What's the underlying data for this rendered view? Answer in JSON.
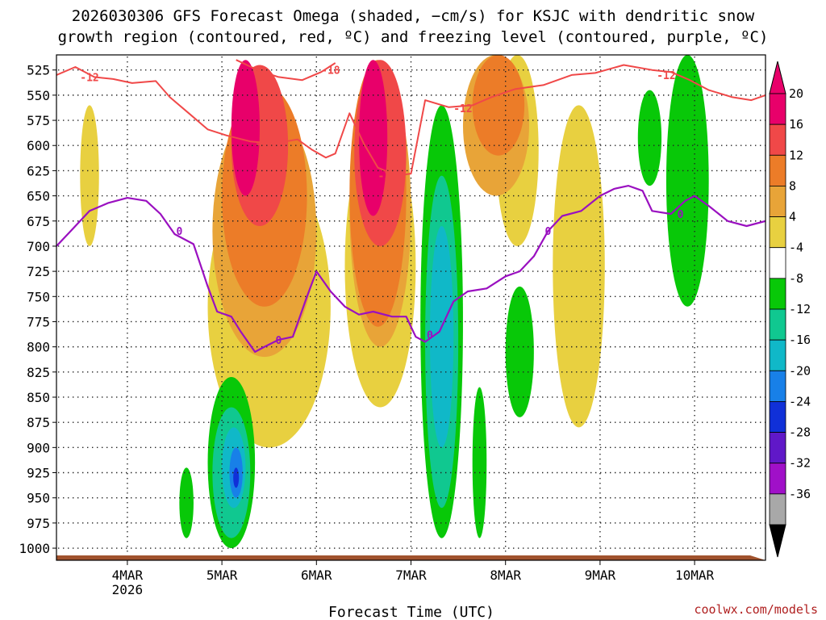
{
  "chart_data": {
    "type": "heatmap",
    "title_line1": "2026030306 GFS Forecast Omega (shaded, −cm/s) for KSJC with dendritic snow",
    "title_line2": "growth region (contoured, red, ºC) and freezing level (contoured, purple, ºC)",
    "xlabel": "Forecast Time (UTC)",
    "credit": "coolwx.com/models",
    "x_start": "2026030306",
    "x_range_days": [
      3.25,
      10.75
    ],
    "x_ticks": [
      {
        "day": 4,
        "label": "4MAR",
        "sublabel": "2026"
      },
      {
        "day": 5,
        "label": "5MAR",
        "sublabel": ""
      },
      {
        "day": 6,
        "label": "6MAR",
        "sublabel": ""
      },
      {
        "day": 7,
        "label": "7MAR",
        "sublabel": ""
      },
      {
        "day": 8,
        "label": "8MAR",
        "sublabel": ""
      },
      {
        "day": 9,
        "label": "9MAR",
        "sublabel": ""
      },
      {
        "day": 10,
        "label": "10MAR",
        "sublabel": ""
      }
    ],
    "y_axis": "pressure (hPa)",
    "y_range": [
      510,
      1012
    ],
    "y_ticks": [
      525,
      550,
      575,
      600,
      625,
      650,
      675,
      700,
      725,
      750,
      775,
      800,
      825,
      850,
      875,
      900,
      925,
      950,
      975,
      1000
    ],
    "colorbar": {
      "labels": [
        "20",
        "16",
        "12",
        "8",
        "4",
        "-4",
        "-8",
        "-12",
        "-16",
        "-20",
        "-24",
        "-28",
        "-32",
        "-36"
      ],
      "colors": [
        "#e8006a",
        "#f04848",
        "#ec7c28",
        "#e8a438",
        "#e8d040",
        "#ffffff",
        "#08c808",
        "#10c890",
        "#10b8c8",
        "#1880e8",
        "#1030d8",
        "#6018c8",
        "#a010c8",
        "#a8a8a8"
      ],
      "top_arrow_color": "#e8006a",
      "bottom_arrow_color": "#000000"
    },
    "freezing_level": {
      "label": "0",
      "color": "#9a10c0",
      "label_points": [
        [
          4.55,
          685
        ],
        [
          5.6,
          793
        ],
        [
          7.2,
          788
        ],
        [
          8.45,
          685
        ],
        [
          9.85,
          668
        ]
      ],
      "points": [
        [
          3.25,
          700
        ],
        [
          3.4,
          685
        ],
        [
          3.6,
          665
        ],
        [
          3.8,
          657
        ],
        [
          4.0,
          652
        ],
        [
          4.2,
          655
        ],
        [
          4.35,
          668
        ],
        [
          4.5,
          688
        ],
        [
          4.7,
          698
        ],
        [
          4.85,
          740
        ],
        [
          4.95,
          765
        ],
        [
          5.1,
          770
        ],
        [
          5.2,
          785
        ],
        [
          5.35,
          805
        ],
        [
          5.45,
          800
        ],
        [
          5.6,
          793
        ],
        [
          5.75,
          790
        ],
        [
          5.9,
          750
        ],
        [
          6.0,
          725
        ],
        [
          6.15,
          745
        ],
        [
          6.3,
          760
        ],
        [
          6.45,
          768
        ],
        [
          6.6,
          765
        ],
        [
          6.8,
          770
        ],
        [
          6.95,
          770
        ],
        [
          7.05,
          790
        ],
        [
          7.15,
          795
        ],
        [
          7.3,
          785
        ],
        [
          7.45,
          755
        ],
        [
          7.6,
          745
        ],
        [
          7.8,
          742
        ],
        [
          8.0,
          730
        ],
        [
          8.15,
          725
        ],
        [
          8.3,
          710
        ],
        [
          8.45,
          685
        ],
        [
          8.6,
          670
        ],
        [
          8.8,
          665
        ],
        [
          9.0,
          650
        ],
        [
          9.15,
          643
        ],
        [
          9.3,
          640
        ],
        [
          9.45,
          645
        ],
        [
          9.55,
          665
        ],
        [
          9.75,
          668
        ],
        [
          9.9,
          655
        ],
        [
          10.0,
          650
        ],
        [
          10.15,
          660
        ],
        [
          10.35,
          675
        ],
        [
          10.55,
          680
        ],
        [
          10.75,
          675
        ]
      ]
    },
    "dendritic_minus12": {
      "label": "-12",
      "color": "#f04848",
      "label_points": [
        [
          3.6,
          532
        ],
        [
          5.45,
          598
        ],
        [
          6.75,
          630
        ],
        [
          7.55,
          563
        ],
        [
          9.7,
          530
        ]
      ],
      "segments": [
        [
          [
            3.25,
            530
          ],
          [
            3.45,
            522
          ],
          [
            3.65,
            532
          ],
          [
            3.85,
            534
          ],
          [
            4.05,
            538
          ],
          [
            4.3,
            536
          ],
          [
            4.45,
            552
          ],
          [
            4.65,
            568
          ],
          [
            4.85,
            584
          ],
          [
            5.05,
            590
          ],
          [
            5.3,
            596
          ],
          [
            5.55,
            598
          ],
          [
            5.8,
            594
          ],
          [
            5.95,
            604
          ],
          [
            6.1,
            612
          ],
          [
            6.2,
            608
          ],
          [
            6.35,
            568
          ],
          [
            6.5,
            598
          ],
          [
            6.65,
            622
          ],
          [
            6.85,
            630
          ],
          [
            7.0,
            628
          ],
          [
            7.15,
            555
          ],
          [
            7.4,
            562
          ],
          [
            7.65,
            560
          ],
          [
            7.85,
            552
          ],
          [
            8.1,
            544
          ],
          [
            8.4,
            540
          ],
          [
            8.7,
            530
          ],
          [
            8.95,
            528
          ],
          [
            9.25,
            520
          ],
          [
            9.55,
            525
          ],
          [
            9.75,
            527
          ],
          [
            9.95,
            535
          ],
          [
            10.15,
            545
          ],
          [
            10.4,
            552
          ],
          [
            10.6,
            555
          ],
          [
            10.75,
            550
          ]
        ]
      ]
    },
    "dendritic_minus18": {
      "label": "-18",
      "color": "#f04848",
      "label_points": [
        [
          6.15,
          525
        ]
      ],
      "segments": [
        [
          [
            5.15,
            515
          ],
          [
            5.4,
            526
          ],
          [
            5.6,
            532
          ],
          [
            5.85,
            535
          ],
          [
            6.05,
            527
          ],
          [
            6.2,
            518
          ]
        ]
      ]
    },
    "omega_regions": [
      {
        "value": 4,
        "color": "#e8d040",
        "day": [
          4.85,
          6.15
        ],
        "p": [
          620,
          900
        ]
      },
      {
        "value": 4,
        "color": "#e8d040",
        "day": [
          6.3,
          7.05
        ],
        "p": [
          580,
          860
        ]
      },
      {
        "value": 4,
        "color": "#e8d040",
        "day": [
          3.5,
          3.7
        ],
        "p": [
          560,
          700
        ]
      },
      {
        "value": 4,
        "color": "#e8d040",
        "day": [
          7.9,
          8.35
        ],
        "p": [
          510,
          700
        ]
      },
      {
        "value": 4,
        "color": "#e8d040",
        "day": [
          8.5,
          9.05
        ],
        "p": [
          560,
          880
        ]
      },
      {
        "value": 8,
        "color": "#e8a438",
        "day": [
          4.9,
          6.0
        ],
        "p": [
          560,
          810
        ]
      },
      {
        "value": 8,
        "color": "#e8a438",
        "day": [
          6.35,
          7.0
        ],
        "p": [
          530,
          800
        ]
      },
      {
        "value": 8,
        "color": "#e8a438",
        "day": [
          7.55,
          8.25
        ],
        "p": [
          510,
          650
        ]
      },
      {
        "value": 12,
        "color": "#ec7c28",
        "day": [
          5.0,
          5.9
        ],
        "p": [
          540,
          760
        ]
      },
      {
        "value": 12,
        "color": "#ec7c28",
        "day": [
          6.35,
          6.95
        ],
        "p": [
          515,
          780
        ]
      },
      {
        "value": 12,
        "color": "#ec7c28",
        "day": [
          7.65,
          8.2
        ],
        "p": [
          510,
          610
        ]
      },
      {
        "value": 16,
        "color": "#f04848",
        "day": [
          5.1,
          5.7
        ],
        "p": [
          520,
          680
        ]
      },
      {
        "value": 16,
        "color": "#f04848",
        "day": [
          6.4,
          6.95
        ],
        "p": [
          515,
          700
        ]
      },
      {
        "value": 20,
        "color": "#e8006a",
        "day": [
          5.1,
          5.4
        ],
        "p": [
          515,
          650
        ]
      },
      {
        "value": 20,
        "color": "#e8006a",
        "day": [
          6.45,
          6.75
        ],
        "p": [
          515,
          670
        ]
      },
      {
        "value": -4,
        "color": "#08c808",
        "day": [
          7.1,
          7.55
        ],
        "p": [
          560,
          990
        ]
      },
      {
        "value": -4,
        "color": "#08c808",
        "day": [
          4.85,
          5.35
        ],
        "p": [
          830,
          1000
        ]
      },
      {
        "value": -4,
        "color": "#08c808",
        "day": [
          9.4,
          9.65
        ],
        "p": [
          545,
          640
        ]
      },
      {
        "value": -4,
        "color": "#08c808",
        "day": [
          9.7,
          10.15
        ],
        "p": [
          510,
          760
        ]
      },
      {
        "value": -4,
        "color": "#08c808",
        "day": [
          4.55,
          4.7
        ],
        "p": [
          920,
          990
        ]
      },
      {
        "value": -4,
        "color": "#08c808",
        "day": [
          8.0,
          8.3
        ],
        "p": [
          740,
          870
        ]
      },
      {
        "value": -4,
        "color": "#08c808",
        "day": [
          7.65,
          7.8
        ],
        "p": [
          840,
          990
        ]
      },
      {
        "value": -8,
        "color": "#10c890",
        "day": [
          7.15,
          7.5
        ],
        "p": [
          630,
          960
        ]
      },
      {
        "value": -8,
        "color": "#10c890",
        "day": [
          4.9,
          5.3
        ],
        "p": [
          860,
          990
        ]
      },
      {
        "value": -12,
        "color": "#10b8c8",
        "day": [
          7.2,
          7.45
        ],
        "p": [
          680,
          900
        ]
      },
      {
        "value": -12,
        "color": "#10b8c8",
        "day": [
          5.0,
          5.25
        ],
        "p": [
          880,
          960
        ]
      },
      {
        "value": -16,
        "color": "#1880e8",
        "day": [
          5.08,
          5.22
        ],
        "p": [
          900,
          950
        ]
      },
      {
        "value": -20,
        "color": "#1030d8",
        "day": [
          5.12,
          5.18
        ],
        "p": [
          920,
          940
        ]
      }
    ]
  }
}
